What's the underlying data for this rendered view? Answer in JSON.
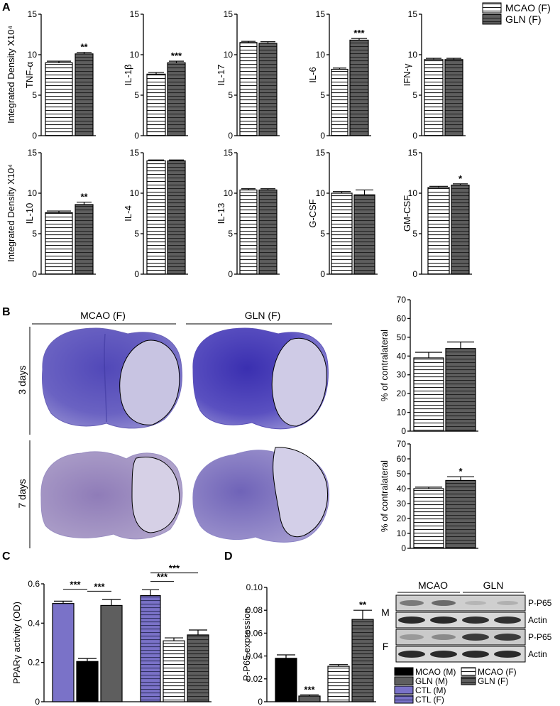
{
  "panel_labels": {
    "a": "A",
    "b": "B",
    "c": "C",
    "d": "D"
  },
  "legend_a": {
    "mcao": "MCAO (F)",
    "gln": "GLN (F)"
  },
  "chart_data": [
    {
      "id": "tnf",
      "type": "bar",
      "ylabel": "TNF-α",
      "ylabel_outer": "Integrated Density X10⁴",
      "ylim": [
        0,
        15
      ],
      "ticks": [
        0,
        5,
        10,
        15
      ],
      "categories": [
        "MCAO (F)",
        "GLN (F)"
      ],
      "values": [
        9.0,
        10.1
      ],
      "errors": [
        0.2,
        0.2
      ],
      "sig": [
        "",
        "**"
      ]
    },
    {
      "id": "il1b",
      "type": "bar",
      "ylabel": "IL-1β",
      "ylim": [
        0,
        15
      ],
      "ticks": [
        0,
        5,
        10,
        15
      ],
      "categories": [
        "MCAO (F)",
        "GLN (F)"
      ],
      "values": [
        7.6,
        9.0
      ],
      "errors": [
        0.2,
        0.2
      ],
      "sig": [
        "",
        "***"
      ]
    },
    {
      "id": "il17",
      "type": "bar",
      "ylabel": "IL-17",
      "ylim": [
        0,
        15
      ],
      "ticks": [
        0,
        5,
        10,
        15
      ],
      "categories": [
        "MCAO (F)",
        "GLN (F)"
      ],
      "values": [
        11.5,
        11.4
      ],
      "errors": [
        0.15,
        0.2
      ],
      "sig": [
        "",
        ""
      ]
    },
    {
      "id": "il6",
      "type": "bar",
      "ylabel": "IL-6",
      "ylim": [
        0,
        15
      ],
      "ticks": [
        0,
        5,
        10,
        15
      ],
      "categories": [
        "MCAO (F)",
        "GLN (F)"
      ],
      "values": [
        8.2,
        11.8
      ],
      "errors": [
        0.15,
        0.2
      ],
      "sig": [
        "",
        "***"
      ]
    },
    {
      "id": "ifng",
      "type": "bar",
      "ylabel": "IFN-γ",
      "ylim": [
        0,
        15
      ],
      "ticks": [
        0,
        5,
        10,
        15
      ],
      "categories": [
        "MCAO (F)",
        "GLN (F)"
      ],
      "values": [
        9.4,
        9.4
      ],
      "errors": [
        0.15,
        0.15
      ],
      "sig": [
        "",
        ""
      ]
    },
    {
      "id": "il10",
      "type": "bar",
      "ylabel": "IL-10",
      "ylabel_outer": "Integrated Density X10⁴",
      "ylim": [
        0,
        15
      ],
      "ticks": [
        0,
        5,
        10,
        15
      ],
      "categories": [
        "MCAO (F)",
        "GLN (F)"
      ],
      "values": [
        7.6,
        8.6
      ],
      "errors": [
        0.2,
        0.3
      ],
      "sig": [
        "",
        "**"
      ]
    },
    {
      "id": "il4",
      "type": "bar",
      "ylabel": "IL-4",
      "ylim": [
        0,
        15
      ],
      "ticks": [
        0,
        5,
        10,
        15
      ],
      "categories": [
        "MCAO (F)",
        "GLN (F)"
      ],
      "values": [
        14.0,
        14.0
      ],
      "errors": [
        0.1,
        0.1
      ],
      "sig": [
        "",
        ""
      ]
    },
    {
      "id": "il13",
      "type": "bar",
      "ylabel": "IL-13",
      "ylim": [
        0,
        15
      ],
      "ticks": [
        0,
        5,
        10,
        15
      ],
      "categories": [
        "MCAO (F)",
        "GLN (F)"
      ],
      "values": [
        10.4,
        10.4
      ],
      "errors": [
        0.15,
        0.15
      ],
      "sig": [
        "",
        ""
      ]
    },
    {
      "id": "gcsf",
      "type": "bar",
      "ylabel": "G-CSF",
      "ylim": [
        0,
        15
      ],
      "ticks": [
        0,
        5,
        10,
        15
      ],
      "categories": [
        "MCAO (F)",
        "GLN (F)"
      ],
      "values": [
        10.0,
        9.8
      ],
      "errors": [
        0.2,
        0.6
      ],
      "sig": [
        "",
        ""
      ]
    },
    {
      "id": "gmcsf",
      "type": "bar",
      "ylabel": "GM-CSF",
      "ylim": [
        0,
        15
      ],
      "ticks": [
        0,
        5,
        10,
        15
      ],
      "categories": [
        "MCAO (F)",
        "GLN (F)"
      ],
      "values": [
        10.7,
        11.0
      ],
      "errors": [
        0.15,
        0.15
      ],
      "sig": [
        "",
        "*"
      ]
    },
    {
      "id": "b3days",
      "type": "bar",
      "ylabel": "% of contralateral",
      "ylim": [
        0,
        70
      ],
      "ticks": [
        0,
        10,
        20,
        30,
        40,
        50,
        60,
        70
      ],
      "categories": [
        "MCAO (F)",
        "GLN (F)"
      ],
      "values": [
        39,
        44
      ],
      "errors": [
        3.0,
        3.5
      ],
      "sig": [
        "",
        ""
      ]
    },
    {
      "id": "b7days",
      "type": "bar",
      "ylabel": "% of contralateral",
      "ylim": [
        0,
        70
      ],
      "ticks": [
        0,
        10,
        20,
        30,
        40,
        50,
        60,
        70
      ],
      "categories": [
        "MCAO (F)",
        "GLN (F)"
      ],
      "values": [
        40,
        45.5
      ],
      "errors": [
        1.0,
        2.5
      ],
      "sig": [
        "",
        "*"
      ]
    },
    {
      "id": "pparg",
      "type": "bar",
      "ylabel": "PPARγ activity (OD)",
      "ylim": [
        0,
        0.6
      ],
      "ticks": [
        0,
        0.2,
        0.4,
        0.6
      ],
      "tick_labels": [
        "0",
        "0.2",
        "0.4",
        "0.6"
      ],
      "categories": [
        "CTL (M)",
        "MCAO (M)",
        "GLN (M)",
        "CTL (F)",
        "MCAO (F)",
        "GLN (F)"
      ],
      "values": [
        0.5,
        0.205,
        0.49,
        0.54,
        0.31,
        0.34
      ],
      "errors": [
        0.012,
        0.015,
        0.03,
        0.03,
        0.015,
        0.025
      ],
      "sig_brackets": [
        {
          "from": 0,
          "to": 1,
          "label": "***"
        },
        {
          "from": 1,
          "to": 2,
          "label": "***"
        },
        {
          "from": 3,
          "to": 4,
          "label": "***"
        },
        {
          "from": 3,
          "to": 5,
          "label": "***"
        }
      ]
    },
    {
      "id": "pp65",
      "type": "bar",
      "ylabel": "P-P65 expression",
      "ylim": [
        0,
        0.1
      ],
      "ticks": [
        0,
        0.02,
        0.04,
        0.06,
        0.08,
        0.1
      ],
      "tick_labels": [
        "0",
        "0.02",
        "0.04",
        "0.06",
        "0.08",
        "0.10"
      ],
      "categories": [
        "MCAO (M)",
        "GLN (M)",
        "MCAO (F)",
        "GLN (F)"
      ],
      "values": [
        0.038,
        0.005,
        0.031,
        0.072
      ],
      "errors": [
        0.003,
        0.001,
        0.0015,
        0.008
      ],
      "sig": [
        "",
        "***",
        "",
        "**"
      ]
    }
  ],
  "panel_b": {
    "col1": "MCAO (F)",
    "col2": "GLN (F)",
    "row1": "3 days",
    "row2": "7 days"
  },
  "blot": {
    "group1": "MCAO",
    "group2": "GLN",
    "row_m": "M",
    "row_f": "F",
    "band_p65": "P-P65",
    "band_actin": "Actin"
  },
  "legend_cd": {
    "mcao_m": "MCAO (M)",
    "gln_m": "GLN (M)",
    "mcao_f": "MCAO (F)",
    "gln_f": "GLN (F)",
    "ctl_m": "CTL (M)",
    "ctl_f": "CTL (F)"
  },
  "colors": {
    "ctl": "#7a72c8",
    "dark": "#5e5e5e",
    "black": "#000000",
    "stain": "#5b52b8"
  }
}
